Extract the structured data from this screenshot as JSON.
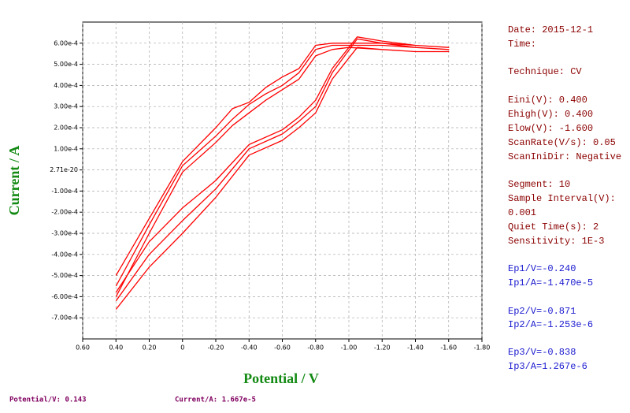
{
  "chart_data": {
    "type": "line",
    "xlabel": "Potential / V",
    "ylabel": "Current / A",
    "x": [
      0.4,
      0.2,
      0,
      -0.2,
      -0.3,
      -0.4,
      -0.5,
      -0.6,
      -0.7,
      -0.8,
      -0.9,
      -1.0,
      -1.2,
      -1.4,
      -1.6,
      -1.4,
      -1.2,
      -1.05,
      -0.9,
      -0.8,
      -0.7,
      -0.6,
      -0.4,
      -0.2,
      0,
      0.2,
      0.4
    ],
    "series": [
      {
        "color": "#ff0000",
        "values": [
          -0.0005,
          -0.00023,
          4e-05,
          0.0002,
          0.00029,
          0.00032,
          0.00039,
          0.00044,
          0.00048,
          0.00059,
          0.0006,
          0.0006,
          0.0006,
          0.00059,
          0.00058,
          0.00059,
          0.00061,
          0.00063,
          0.00048,
          0.00033,
          0.00025,
          0.00019,
          0.00012,
          -5e-05,
          -0.00018,
          -0.00034,
          -0.00058
        ]
      },
      {
        "color": "#ff0000",
        "values": [
          -0.00055,
          -0.00026,
          2e-05,
          0.00016,
          0.00024,
          0.00031,
          0.00036,
          0.0004,
          0.00046,
          0.00057,
          0.00059,
          0.00059,
          0.00059,
          0.00058,
          0.00057,
          0.00058,
          0.0006,
          0.00062,
          0.00046,
          0.0003,
          0.00023,
          0.00017,
          0.0001,
          -9e-05,
          -0.00024,
          -0.0004,
          -0.00062
        ]
      },
      {
        "color": "#ff0000",
        "values": [
          -0.0006,
          -0.0003,
          -1e-05,
          0.00013,
          0.00021,
          0.00027,
          0.00033,
          0.00038,
          0.00043,
          0.00054,
          0.00057,
          0.00058,
          0.00057,
          0.00056,
          0.00056,
          0.00056,
          0.00057,
          0.00058,
          0.00043,
          0.00027,
          0.0002,
          0.00014,
          7e-05,
          -0.00013,
          -0.0003,
          -0.00046,
          -0.00066
        ]
      }
    ],
    "xlim": [
      0.6,
      -1.8
    ],
    "xticks": [
      {
        "value": 0.6,
        "label": "0.60"
      },
      {
        "value": 0.4,
        "label": "0.40"
      },
      {
        "value": 0.2,
        "label": "0.20"
      },
      0,
      {
        "value": -0.2,
        "label": "-0.20"
      },
      {
        "value": -0.4,
        "label": "-0.40"
      },
      {
        "value": -0.6,
        "label": "-0.60"
      },
      {
        "value": -0.8,
        "label": "-0.80"
      },
      {
        "value": -1.0,
        "label": "-1.00"
      },
      {
        "value": -1.2,
        "label": "-1.20"
      },
      {
        "value": -1.4,
        "label": "-1.40"
      },
      {
        "value": -1.6,
        "label": "-1.60"
      },
      {
        "value": -1.8,
        "label": "-1.80"
      }
    ],
    "ylim": [
      -0.0008,
      0.0007
    ],
    "yticks": [
      {
        "value": 0.0006,
        "label": "6.00e-4"
      },
      {
        "value": 0.0005,
        "label": "5.00e-4"
      },
      {
        "value": 0.0004,
        "label": "4.00e-4"
      },
      {
        "value": 0.0003,
        "label": "3.00e-4"
      },
      {
        "value": 0.0002,
        "label": "2.00e-4"
      },
      {
        "value": 0.0001,
        "label": "1.00e-4"
      },
      {
        "value": 2.71e-20,
        "label": "2.71e-20"
      },
      {
        "value": -0.0001,
        "label": "-1.00e-4"
      },
      {
        "value": -0.0002,
        "label": "-2.00e-4"
      },
      {
        "value": -0.0003,
        "label": "-3.00e-4"
      },
      {
        "value": -0.0004,
        "label": "-4.00e-4"
      },
      {
        "value": -0.0005,
        "label": "-5.00e-4"
      },
      {
        "value": -0.0006,
        "label": "-6.00e-4"
      },
      {
        "value": -0.0007,
        "label": "-7.00e-4"
      }
    ],
    "grid": true
  },
  "info_panel": {
    "date": "Date: 2015-12-1",
    "time": "Time:",
    "technique": "Technique:  CV",
    "params": [
      "Eini(V): 0.400",
      "Ehigh(V): 0.400",
      "Elow(V): -1.600",
      "ScanRate(V/s): 0.05",
      "ScanIniDir: Negative"
    ],
    "settings": [
      "Segment: 10",
      "Sample Interval(V):",
      "0.001",
      "Quiet Time(s): 2",
      "Sensitivity: 1E-3"
    ],
    "peaks": [
      [
        "Ep1/V=-0.240",
        "Ip1/A=-1.470e-5"
      ],
      [
        "Ep2/V=-0.871",
        "Ip2/A=-1.253e-6"
      ],
      [
        "Ep3/V=-0.838",
        "Ip3/A=1.267e-6"
      ]
    ]
  },
  "status_bar": {
    "potential": "Potential/V: 0.143",
    "current": "Current/A: 1.667e-5"
  }
}
